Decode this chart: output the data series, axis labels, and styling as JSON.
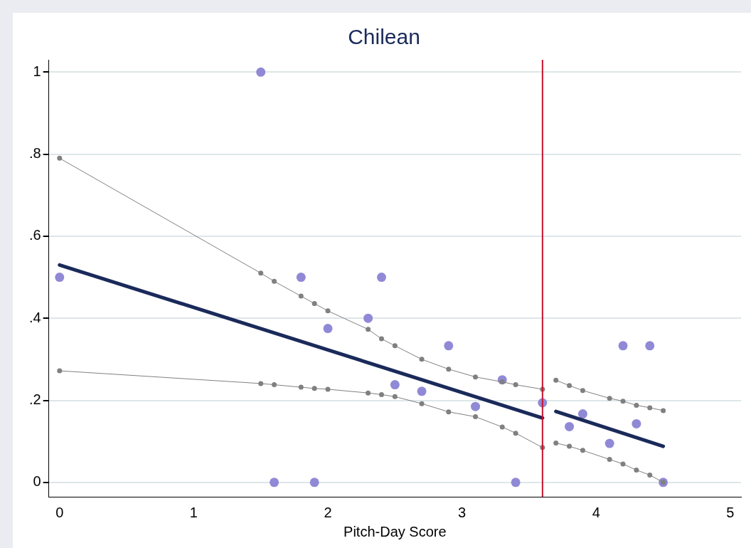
{
  "chart_data": {
    "type": "scatter",
    "title": "Chilean",
    "xlabel": "Pitch-Day Score",
    "xlim": [
      -0.08,
      5.08
    ],
    "xticks": [
      0,
      1,
      2,
      3,
      4,
      5
    ],
    "ylim": [
      -0.035,
      1.03
    ],
    "yticks": [
      0,
      {
        "value": 0.2,
        "label": ".2"
      },
      {
        "value": 0.4,
        "label": ".4"
      },
      {
        "value": 0.6,
        "label": ".6"
      },
      {
        "value": 0.8,
        "label": ".8"
      },
      1
    ],
    "grid": "y",
    "legend": false,
    "ref_lines": [
      {
        "axis": "x",
        "value": 3.6,
        "color": "#c8102e",
        "line_style": "solid"
      }
    ],
    "series": [
      {
        "type": "line",
        "color": "#808080",
        "marker": "circle",
        "x": [
          0,
          1.5,
          1.6,
          1.8,
          1.9,
          2.0,
          2.3,
          2.4,
          2.5,
          2.7,
          2.9,
          3.1,
          3.3,
          3.4,
          3.6
        ],
        "values": [
          0.79,
          0.51,
          0.49,
          0.454,
          0.436,
          0.418,
          0.373,
          0.35,
          0.333,
          0.3,
          0.276,
          0.257,
          0.245,
          0.238,
          0.227
        ]
      },
      {
        "type": "line",
        "color": "#808080",
        "marker": "circle",
        "x": [
          0,
          1.5,
          1.6,
          1.8,
          1.9,
          2.0,
          2.3,
          2.4,
          2.5,
          2.7,
          2.9,
          3.1,
          3.3,
          3.4,
          3.6
        ],
        "values": [
          0.272,
          0.241,
          0.238,
          0.232,
          0.229,
          0.227,
          0.218,
          0.214,
          0.209,
          0.192,
          0.172,
          0.16,
          0.135,
          0.12,
          0.085
        ]
      },
      {
        "type": "line",
        "color": "#808080",
        "marker": "circle",
        "x": [
          3.7,
          3.8,
          3.9,
          4.1,
          4.2,
          4.3,
          4.4,
          4.5
        ],
        "values": [
          0.249,
          0.236,
          0.224,
          0.205,
          0.198,
          0.188,
          0.182,
          0.175
        ]
      },
      {
        "type": "line",
        "color": "#808080",
        "marker": "circle",
        "x": [
          3.7,
          3.8,
          3.9,
          4.1,
          4.2,
          4.3,
          4.4,
          4.5
        ],
        "values": [
          0.096,
          0.088,
          0.078,
          0.056,
          0.045,
          0.03,
          0.018,
          0.0
        ]
      },
      {
        "type": "line",
        "color": "#1a2a5a",
        "marker": "none",
        "x": [
          0,
          3.6
        ],
        "values": [
          0.53,
          0.157
        ]
      },
      {
        "type": "line",
        "color": "#1a2a5a",
        "marker": "none",
        "x": [
          3.7,
          4.5
        ],
        "values": [
          0.173,
          0.088
        ]
      },
      {
        "type": "scatter",
        "color": "#9089d6",
        "marker": "circle",
        "x": [
          0,
          1.5,
          1.6,
          1.8,
          1.9,
          2.0,
          2.3,
          2.4,
          2.5,
          2.7,
          2.9,
          3.1,
          3.3,
          3.4,
          3.6,
          3.8,
          3.9,
          4.1,
          4.2,
          4.3,
          4.4,
          4.5
        ],
        "values": [
          0.5,
          1,
          0,
          0.5,
          0,
          0.375,
          0.4,
          0.5,
          0.238,
          0.222,
          0.333,
          0.185,
          0.25,
          0,
          0.194,
          0.136,
          0.167,
          0.095,
          0.333,
          0.143,
          0.333,
          0
        ]
      }
    ]
  }
}
